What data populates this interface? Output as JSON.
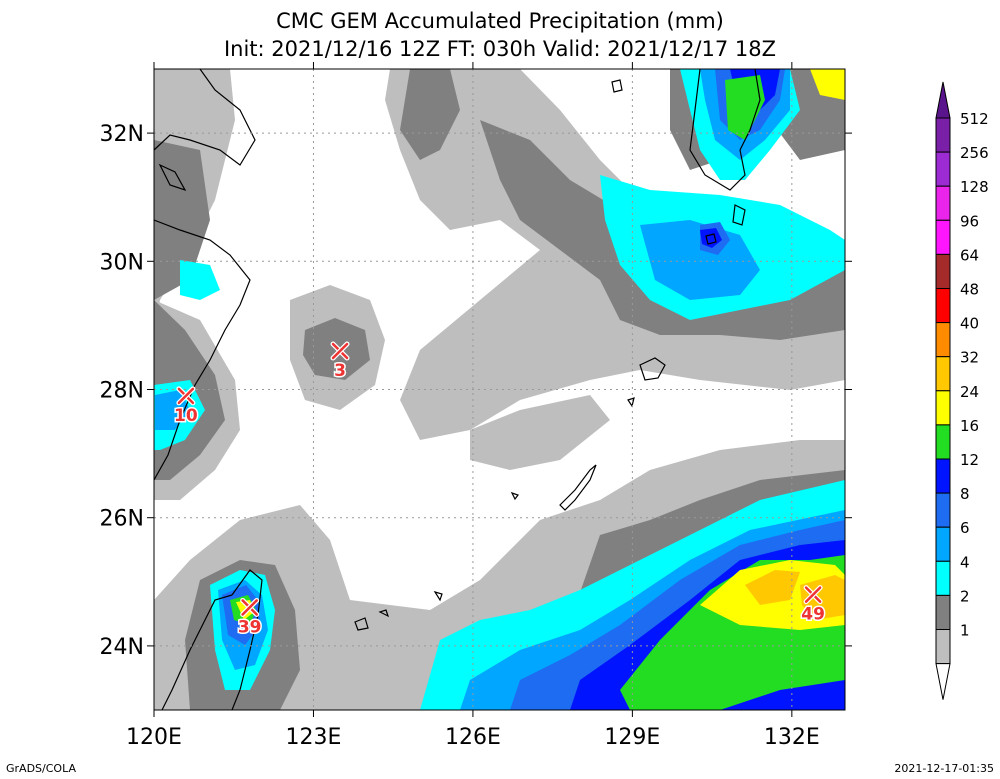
{
  "title_line1": "CMC GEM Accumulated Precipitation (mm)",
  "title_line2": "Init: 2021/12/16 12Z  FT: 030h  Valid: 2021/12/17 18Z",
  "credit": "GrADS/COLA",
  "timestamp": "2021-12-17-01:35",
  "axes": {
    "lon_labels": [
      "120E",
      "123E",
      "126E",
      "129E",
      "132E"
    ],
    "lon_values": [
      120,
      123,
      126,
      129,
      132
    ],
    "lat_labels": [
      "32N",
      "30N",
      "28N",
      "26N",
      "24N"
    ],
    "lat_values": [
      32,
      30,
      28,
      26,
      24
    ],
    "lon_range": [
      120,
      133
    ],
    "lat_range": [
      23,
      33
    ]
  },
  "colorbar": {
    "levels": [
      "512",
      "256",
      "128",
      "96",
      "64",
      "48",
      "40",
      "32",
      "24",
      "16",
      "12",
      "8",
      "6",
      "4",
      "2",
      "1"
    ],
    "colors": [
      "#7a1fa8",
      "#9c2bd3",
      "#ea24ea",
      "#ff16ff",
      "#a52a2a",
      "#ff0000",
      "#ff8c00",
      "#ffc800",
      "#ffff00",
      "#22dd22",
      "#0014ff",
      "#1e6cf2",
      "#00a6ff",
      "#00ffff",
      "#808080",
      "#bebebe"
    ],
    "over_color": "#5a148c",
    "under_color": "#ffffff"
  },
  "markers": [
    {
      "label": "10",
      "lon": 120.6,
      "lat": 27.9
    },
    {
      "label": "3",
      "lon": 123.5,
      "lat": 28.6
    },
    {
      "label": "39",
      "lon": 121.8,
      "lat": 24.6
    },
    {
      "label": "49",
      "lon": 132.4,
      "lat": 24.8
    }
  ],
  "marker_color": "#ee3333"
}
